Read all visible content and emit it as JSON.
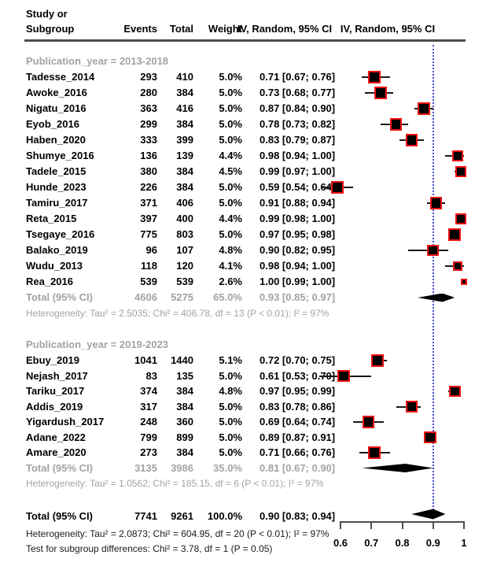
{
  "header": {
    "study_line1": "Study or",
    "study_line2": "Subgroup",
    "events": "Events",
    "total": "Total",
    "weight": "Weight",
    "ci_column": "IV, Random, 95% CI",
    "plot_column": "IV, Random, 95% CI"
  },
  "colors": {
    "square_fill": "#000000",
    "square_border": "#ee1111",
    "diamond": "#000000",
    "reference_line": "#4646d8",
    "gray_text": "#a3a3a3",
    "axis": "#4d4d4d"
  },
  "chart_data": {
    "type": "scatter",
    "subtype": "forest-plot-meta-analysis",
    "effect_measure": "IV, Random, 95% CI",
    "xlim": [
      0.6,
      1.0
    ],
    "axis_ticks": [
      {
        "label": "0.6",
        "value": 0.6
      },
      {
        "label": "0.7",
        "value": 0.7
      },
      {
        "label": "0.8",
        "value": 0.8
      },
      {
        "label": "0.9",
        "value": 0.9
      },
      {
        "label": "1",
        "value": 1.0
      }
    ],
    "reference_line_value": 0.9,
    "groups": [
      {
        "label": "Publication_year = 2013-2018",
        "studies": [
          {
            "name": "Tadesse_2014",
            "events": "293",
            "total": "410",
            "weight": "5.0%",
            "w": 5.0,
            "ci": "0.71 [0.67; 0.76]",
            "est": 0.71,
            "lo": 0.67,
            "hi": 0.76
          },
          {
            "name": "Awoke_2016",
            "events": "280",
            "total": "384",
            "weight": "5.0%",
            "w": 5.0,
            "ci": "0.73 [0.68; 0.77]",
            "est": 0.73,
            "lo": 0.68,
            "hi": 0.77
          },
          {
            "name": "Nigatu_2016",
            "events": "363",
            "total": "416",
            "weight": "5.0%",
            "w": 5.0,
            "ci": "0.87 [0.84; 0.90]",
            "est": 0.87,
            "lo": 0.84,
            "hi": 0.9
          },
          {
            "name": "Eyob_2016",
            "events": "299",
            "total": "384",
            "weight": "5.0%",
            "w": 5.0,
            "ci": "0.78 [0.73; 0.82]",
            "est": 0.78,
            "lo": 0.73,
            "hi": 0.82
          },
          {
            "name": "Haben_2020",
            "events": "333",
            "total": "399",
            "weight": "5.0%",
            "w": 5.0,
            "ci": "0.83 [0.79; 0.87]",
            "est": 0.83,
            "lo": 0.79,
            "hi": 0.87
          },
          {
            "name": "Shumye_2016",
            "events": "136",
            "total": "139",
            "weight": "4.4%",
            "w": 4.4,
            "ci": "0.98 [0.94; 1.00]",
            "est": 0.98,
            "lo": 0.94,
            "hi": 1.0
          },
          {
            "name": "Tadele_2015",
            "events": "380",
            "total": "384",
            "weight": "4.5%",
            "w": 4.5,
            "ci": "0.99 [0.97; 1.00]",
            "est": 0.99,
            "lo": 0.97,
            "hi": 1.0
          },
          {
            "name": "Hunde_2023",
            "events": "226",
            "total": "384",
            "weight": "5.0%",
            "w": 5.0,
            "ci": "0.59 [0.54; 0.64]",
            "est": 0.59,
            "lo": 0.54,
            "hi": 0.64
          },
          {
            "name": "Tamiru_2017",
            "events": "371",
            "total": "406",
            "weight": "5.0%",
            "w": 5.0,
            "ci": "0.91 [0.88; 0.94]",
            "est": 0.91,
            "lo": 0.88,
            "hi": 0.94
          },
          {
            "name": "Reta_2015",
            "events": "397",
            "total": "400",
            "weight": "4.4%",
            "w": 4.4,
            "ci": "0.99 [0.98; 1.00]",
            "est": 0.99,
            "lo": 0.98,
            "hi": 1.0
          },
          {
            "name": "Tsegaye_2016",
            "events": "775",
            "total": "803",
            "weight": "5.0%",
            "w": 5.0,
            "ci": "0.97 [0.95; 0.98]",
            "est": 0.97,
            "lo": 0.95,
            "hi": 0.98
          },
          {
            "name": "Balako_2019",
            "events": "96",
            "total": "107",
            "weight": "4.8%",
            "w": 4.8,
            "ci": "0.90 [0.82; 0.95]",
            "est": 0.9,
            "lo": 0.82,
            "hi": 0.95
          },
          {
            "name": "Wudu_2013",
            "events": "118",
            "total": "120",
            "weight": "4.1%",
            "w": 4.1,
            "ci": "0.98 [0.94; 1.00]",
            "est": 0.98,
            "lo": 0.94,
            "hi": 1.0
          },
          {
            "name": "Rea_2016",
            "events": "539",
            "total": "539",
            "weight": "2.6%",
            "w": 2.6,
            "ci": "1.00 [0.99; 1.00]",
            "est": 1.0,
            "lo": 0.99,
            "hi": 1.0
          }
        ],
        "total": {
          "name": "Total (95% CI)",
          "events": "4606",
          "total": "5275",
          "weight": "65.0%",
          "ci": "0.93 [0.85; 0.97]",
          "est": 0.93,
          "lo": 0.85,
          "hi": 0.97
        },
        "heterogeneity": "Heterogeneity: Tau² = 2.5035; Chi² = 406.78, df = 13 (P < 0.01); I² = 97%"
      },
      {
        "label": "Publication_year = 2019-2023",
        "studies": [
          {
            "name": "Ebuy_2019",
            "events": "1041",
            "total": "1440",
            "weight": "5.1%",
            "w": 5.1,
            "ci": "0.72 [0.70; 0.75]",
            "est": 0.72,
            "lo": 0.7,
            "hi": 0.75
          },
          {
            "name": "Nejash_2017",
            "events": "83",
            "total": "135",
            "weight": "5.0%",
            "w": 5.0,
            "ci": "0.61 [0.53; 0.70]",
            "est": 0.61,
            "lo": 0.53,
            "hi": 0.7
          },
          {
            "name": "Tariku_2017",
            "events": "374",
            "total": "384",
            "weight": "4.8%",
            "w": 4.8,
            "ci": "0.97 [0.95; 0.99]",
            "est": 0.97,
            "lo": 0.95,
            "hi": 0.99
          },
          {
            "name": "Addis_2019",
            "events": "317",
            "total": "384",
            "weight": "5.0%",
            "w": 5.0,
            "ci": "0.83 [0.78; 0.86]",
            "est": 0.83,
            "lo": 0.78,
            "hi": 0.86
          },
          {
            "name": "Yigardush_2017",
            "events": "248",
            "total": "360",
            "weight": "5.0%",
            "w": 5.0,
            "ci": "0.69 [0.64; 0.74]",
            "est": 0.69,
            "lo": 0.64,
            "hi": 0.74
          },
          {
            "name": "Adane_2022",
            "events": "799",
            "total": "899",
            "weight": "5.0%",
            "w": 5.0,
            "ci": "0.89 [0.87; 0.91]",
            "est": 0.89,
            "lo": 0.87,
            "hi": 0.91
          },
          {
            "name": "Amare_2020",
            "events": "273",
            "total": "384",
            "weight": "5.0%",
            "w": 5.0,
            "ci": "0.71 [0.66; 0.76]",
            "est": 0.71,
            "lo": 0.66,
            "hi": 0.76
          }
        ],
        "total": {
          "name": "Total (95% CI)",
          "events": "3135",
          "total": "3986",
          "weight": "35.0%",
          "ci": "0.81 [0.67; 0.90]",
          "est": 0.81,
          "lo": 0.67,
          "hi": 0.9
        },
        "heterogeneity": "Heterogeneity: Tau² = 1.0562; Chi² = 185.15, df = 6 (P < 0.01); I² = 97%"
      }
    ],
    "overall": {
      "total": {
        "name": "Total (95% CI)",
        "events": "7741",
        "total": "9261",
        "weight": "100.0%",
        "ci": "0.90 [0.83; 0.94]",
        "est": 0.9,
        "lo": 0.83,
        "hi": 0.94
      },
      "heterogeneity": "Heterogeneity: Tau² = 2.0873; Chi² = 604.95, df = 20 (P < 0.01); I² = 97%",
      "subgroup_test": "Test for subgroup differences: Chi² = 3.78, df = 1 (P = 0.05)"
    }
  }
}
